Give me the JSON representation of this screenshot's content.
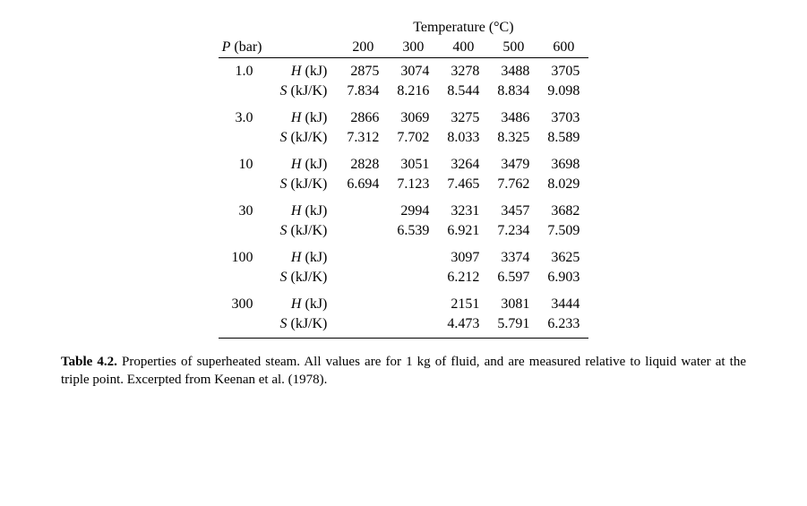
{
  "header": {
    "super": "Temperature (°C)",
    "p_label": "P (bar)",
    "temps": [
      "200",
      "300",
      "400",
      "500",
      "600"
    ]
  },
  "prop_labels": {
    "h": "H (kJ)",
    "s": "S (kJ/K)"
  },
  "rows": [
    {
      "p": "1.0",
      "h": [
        "2875",
        "3074",
        "3278",
        "3488",
        "3705"
      ],
      "s": [
        "7.834",
        "8.216",
        "8.544",
        "8.834",
        "9.098"
      ]
    },
    {
      "p": "3.0",
      "h": [
        "2866",
        "3069",
        "3275",
        "3486",
        "3703"
      ],
      "s": [
        "7.312",
        "7.702",
        "8.033",
        "8.325",
        "8.589"
      ]
    },
    {
      "p": "10",
      "h": [
        "2828",
        "3051",
        "3264",
        "3479",
        "3698"
      ],
      "s": [
        "6.694",
        "7.123",
        "7.465",
        "7.762",
        "8.029"
      ]
    },
    {
      "p": "30",
      "h": [
        "",
        "2994",
        "3231",
        "3457",
        "3682"
      ],
      "s": [
        "",
        "6.539",
        "6.921",
        "7.234",
        "7.509"
      ]
    },
    {
      "p": "100",
      "h": [
        "",
        "",
        "3097",
        "3374",
        "3625"
      ],
      "s": [
        "",
        "",
        "6.212",
        "6.597",
        "6.903"
      ]
    },
    {
      "p": "300",
      "h": [
        "",
        "",
        "2151",
        "3081",
        "3444"
      ],
      "s": [
        "",
        "",
        "4.473",
        "5.791",
        "6.233"
      ]
    }
  ],
  "caption": {
    "label": "Table 4.2.",
    "text": "Properties of superheated steam. All values are for 1 kg of fluid, and are measured relative to liquid water at the triple point. Excerpted from Keenan et al. (1978)."
  },
  "style": {
    "font_family": "Times New Roman",
    "font_size_pt": 12,
    "text_color": "#000000",
    "background_color": "#ffffff",
    "rule_color": "#000000"
  }
}
